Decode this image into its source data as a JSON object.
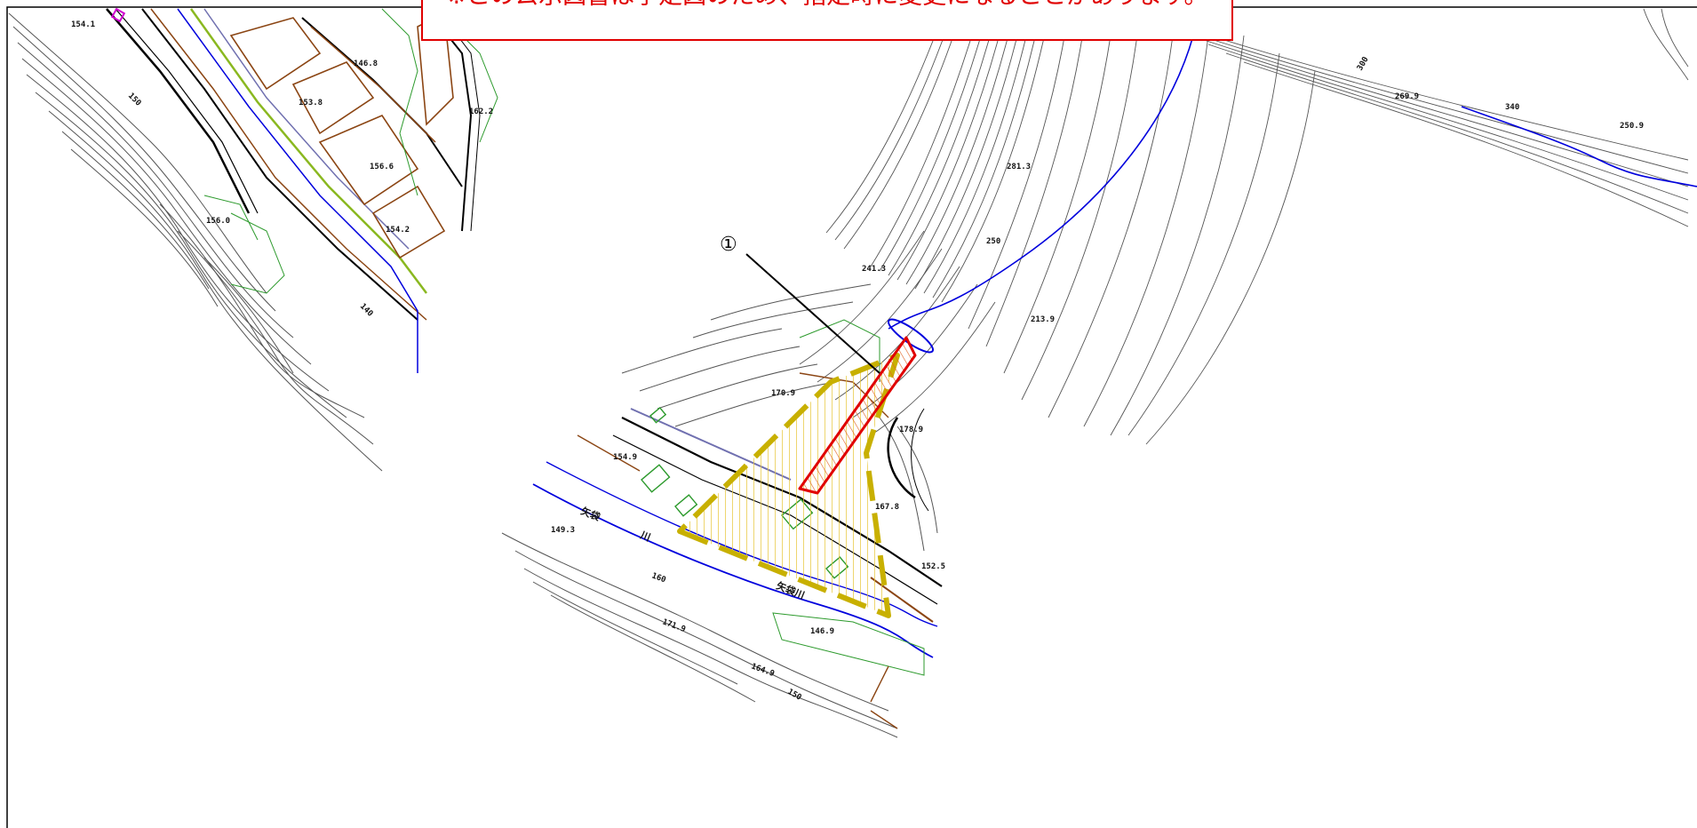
{
  "notice": {
    "text": "※この公示図書は予定図のため、指定時に変更になることがあります。"
  },
  "callout": {
    "number": "①"
  },
  "river_labels": [
    "矢袋",
    "川",
    "矢袋川"
  ],
  "elevation_labels": [
    "154.1",
    "153.8",
    "146.8",
    "162.2",
    "156.6",
    "156.0",
    "154.2",
    "150",
    "140",
    "281.3",
    "241.3",
    "250",
    "213.9",
    "269.9",
    "250.9",
    "300",
    "340",
    "170.9",
    "178.9",
    "154.9",
    "167.8",
    "152.5",
    "149.3",
    "160",
    "171.9",
    "146.9",
    "164.9",
    "150"
  ],
  "colors": {
    "notice_border": "#e00000",
    "designated_area_fill": "#e8c840",
    "designated_area_outline": "#c8b000",
    "target_outline": "#e00000",
    "river": "#0000dd",
    "contour": "#555555",
    "road": "#8b4513",
    "vegetation": "#2c9a2c"
  }
}
